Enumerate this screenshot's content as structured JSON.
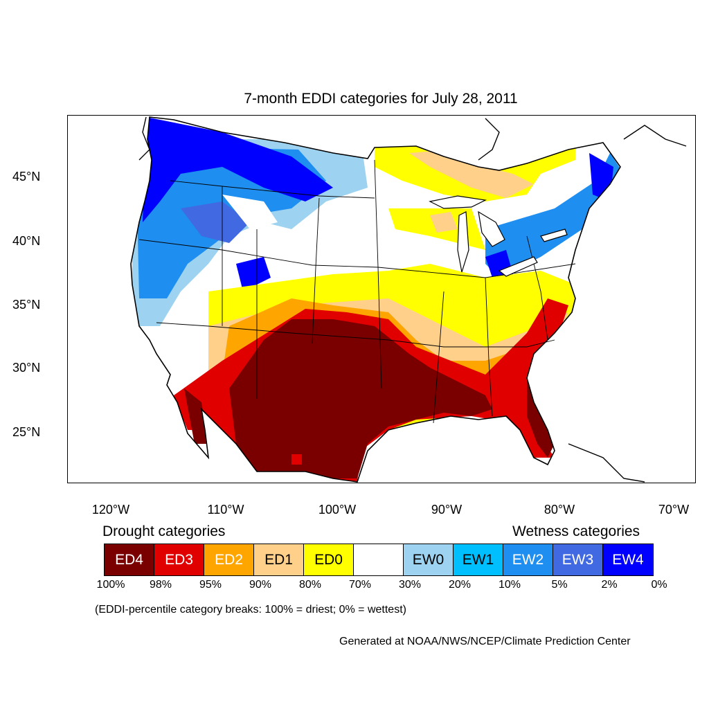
{
  "title": "7-month EDDI categories for July 28, 2011",
  "map": {
    "lat_ticks": [
      "45°N",
      "40°N",
      "35°N",
      "30°N",
      "25°N"
    ],
    "lon_ticks": [
      "120°W",
      "110°W",
      "100°W",
      "90°W",
      "80°W",
      "70°W"
    ]
  },
  "legend": {
    "drought_heading": "Drought categories",
    "wetness_heading": "Wetness categories",
    "categories": [
      {
        "label": "ED4",
        "color": "#7a0000",
        "text_color": "#ffffff"
      },
      {
        "label": "ED3",
        "color": "#e00000",
        "text_color": "#ffffff"
      },
      {
        "label": "ED2",
        "color": "#ffa500",
        "text_color": "#ffffff"
      },
      {
        "label": "ED1",
        "color": "#ffd08a",
        "text_color": "#000000"
      },
      {
        "label": "ED0",
        "color": "#ffff00",
        "text_color": "#000000"
      },
      {
        "label": "",
        "color": "#ffffff",
        "text_color": "#000000"
      },
      {
        "label": "EW0",
        "color": "#9dd2f0",
        "text_color": "#000000"
      },
      {
        "label": "EW1",
        "color": "#00bfff",
        "text_color": "#000000"
      },
      {
        "label": "EW2",
        "color": "#1e8ff0",
        "text_color": "#ffffff"
      },
      {
        "label": "EW3",
        "color": "#4169e1",
        "text_color": "#ffffff"
      },
      {
        "label": "EW4",
        "color": "#0000ff",
        "text_color": "#ffffff"
      }
    ],
    "breaks": [
      "100%",
      "98%",
      "95%",
      "90%",
      "80%",
      "70%",
      "30%",
      "20%",
      "10%",
      "5%",
      "2%",
      "0%"
    ]
  },
  "note": "(EDDI-percentile category breaks: 100% = driest; 0% = wettest)",
  "credit": "Generated at NOAA/NWS/NCEP/Climate Prediction Center"
}
